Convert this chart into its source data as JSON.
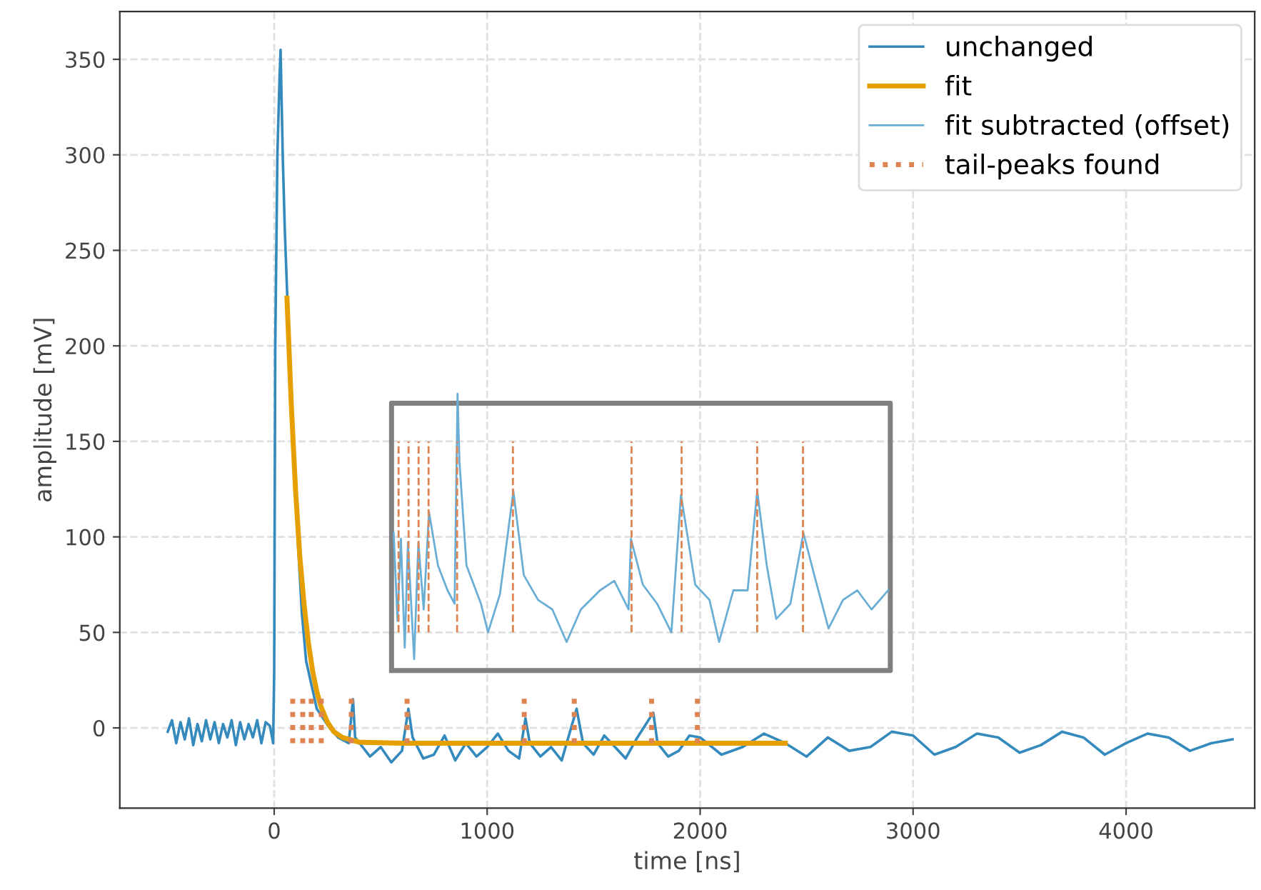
{
  "chart_data": {
    "type": "line",
    "xlabel": "time [ns]",
    "ylabel": "amplitude [mV]",
    "xlim": [
      -725,
      4604
    ],
    "ylim": [
      -42,
      375
    ],
    "xticks": [
      0,
      1000,
      2000,
      3000,
      4000
    ],
    "yticks": [
      0,
      50,
      100,
      150,
      200,
      250,
      300,
      350
    ],
    "grid": true,
    "legend": "top right",
    "line_style": "solid",
    "series": [
      {
        "name": "unchanged",
        "color": "#348abd",
        "x": [
          -500,
          -480,
          -460,
          -440,
          -420,
          -400,
          -380,
          -360,
          -340,
          -320,
          -300,
          -280,
          -260,
          -240,
          -220,
          -200,
          -180,
          -160,
          -140,
          -120,
          -100,
          -80,
          -60,
          -40,
          -20,
          -5,
          0,
          5,
          15,
          25,
          30,
          40,
          50,
          70,
          90,
          110,
          130,
          150,
          170,
          200,
          230,
          260,
          300,
          350,
          370,
          380,
          450,
          500,
          550,
          600,
          630,
          650,
          700,
          750,
          800,
          850,
          900,
          950,
          1000,
          1050,
          1100,
          1150,
          1180,
          1200,
          1250,
          1300,
          1350,
          1420,
          1450,
          1500,
          1550,
          1600,
          1650,
          1700,
          1780,
          1800,
          1850,
          1900,
          1950,
          2000,
          2100,
          2200,
          2300,
          2400,
          2500,
          2600,
          2700,
          2800,
          2900,
          3000,
          3100,
          3200,
          3300,
          3400,
          3500,
          3600,
          3700,
          3800,
          3900,
          4000,
          4100,
          4200,
          4300,
          4400,
          4500
        ],
        "values": [
          -2,
          4,
          -8,
          3,
          -6,
          5,
          -9,
          2,
          -7,
          4,
          -6,
          3,
          -8,
          2,
          -5,
          4,
          -9,
          3,
          -6,
          2,
          -5,
          4,
          -8,
          3,
          1,
          -8,
          30,
          200,
          300,
          340,
          355,
          300,
          260,
          200,
          150,
          100,
          60,
          35,
          25,
          10,
          5,
          0,
          -5,
          -8,
          15,
          -5,
          -15,
          -10,
          -18,
          -12,
          10,
          -5,
          -16,
          -14,
          -4,
          -17,
          -8,
          -15,
          -10,
          -3,
          -12,
          -16,
          5,
          -8,
          -15,
          -10,
          -17,
          10,
          -8,
          -14,
          -4,
          -10,
          -16,
          -6,
          8,
          -8,
          -15,
          -12,
          -4,
          -5,
          -14,
          -10,
          -3,
          -8,
          -15,
          -5,
          -12,
          -10,
          -2,
          -4,
          -14,
          -10,
          -3,
          -5,
          -13,
          -9,
          -2,
          -5,
          -14,
          -8,
          -3,
          -5,
          -12,
          -8,
          -6
        ]
      },
      {
        "name": "fit",
        "color": "#e69f00",
        "x": [
          60,
          80,
          100,
          120,
          140,
          160,
          180,
          200,
          220,
          250,
          280,
          320,
          400,
          600,
          2400
        ],
        "values": [
          225,
          170,
          125,
          90,
          65,
          45,
          30,
          19,
          11,
          3,
          -2,
          -5,
          -7.5,
          -8,
          -8
        ]
      },
      {
        "name": "fit subtracted (offset)",
        "color": "#6aaed6",
        "x": [
          561,
          579,
          595,
          613,
          628,
          657,
          677,
          702,
          727,
          769,
          814,
          847,
          861,
          870,
          903,
          971,
          1004,
          1060,
          1094,
          1123,
          1172,
          1239,
          1306,
          1373,
          1440,
          1530,
          1597,
          1664,
          1675,
          1731,
          1798,
          1865,
          1910,
          1977,
          2044,
          2089,
          2156,
          2223,
          2268,
          2313,
          2357,
          2424,
          2485,
          2536,
          2603,
          2671,
          2738,
          2805,
          2883
        ],
        "values": [
          102,
          56,
          99,
          42,
          97,
          36,
          97,
          62,
          113,
          85,
          72,
          65,
          175,
          139,
          85,
          65,
          50,
          70,
          99,
          124,
          80,
          67,
          62,
          45,
          62,
          72,
          77,
          62,
          99,
          75,
          65,
          50,
          122,
          75,
          67,
          45,
          72,
          72,
          124,
          85,
          57,
          65,
          102,
          80,
          52,
          67,
          72,
          62,
          72
        ]
      },
      {
        "name": "tail-peaks found",
        "color": "#dd8452",
        "line_style": "dotted",
        "x": [
          87,
          87,
          null,
          134,
          134,
          null,
          174,
          174,
          null,
          221,
          221,
          null,
          362,
          362,
          null,
          624,
          624,
          null,
          1174,
          1174,
          null,
          1409,
          1409,
          null,
          1772,
          1772,
          null,
          1987,
          1987,
          null
        ],
        "values": [
          -8,
          17,
          null,
          -8,
          17,
          null,
          -8,
          17,
          null,
          -8,
          17,
          null,
          -8,
          17,
          null,
          -8,
          17,
          null,
          -8,
          17,
          null,
          -8,
          17,
          null,
          -8,
          17,
          null,
          -8,
          17,
          null
        ]
      },
      {
        "color": "#dd8452",
        "line_style": "dashed",
        "x": [
          584,
          584,
          null,
          631,
          631,
          null,
          678,
          678,
          null,
          725,
          725,
          null,
          859,
          859,
          null,
          1121,
          1121,
          null,
          1678,
          1678,
          null,
          1913,
          1913,
          null,
          2268,
          2268,
          null,
          2483,
          2483,
          null
        ],
        "values": [
          50,
          150,
          null,
          50,
          150,
          null,
          50,
          150,
          null,
          50,
          150,
          null,
          50,
          150,
          null,
          50,
          150,
          null,
          50,
          150,
          null,
          50,
          150,
          null,
          50,
          150,
          null,
          50,
          150,
          null
        ]
      }
    ]
  }
}
